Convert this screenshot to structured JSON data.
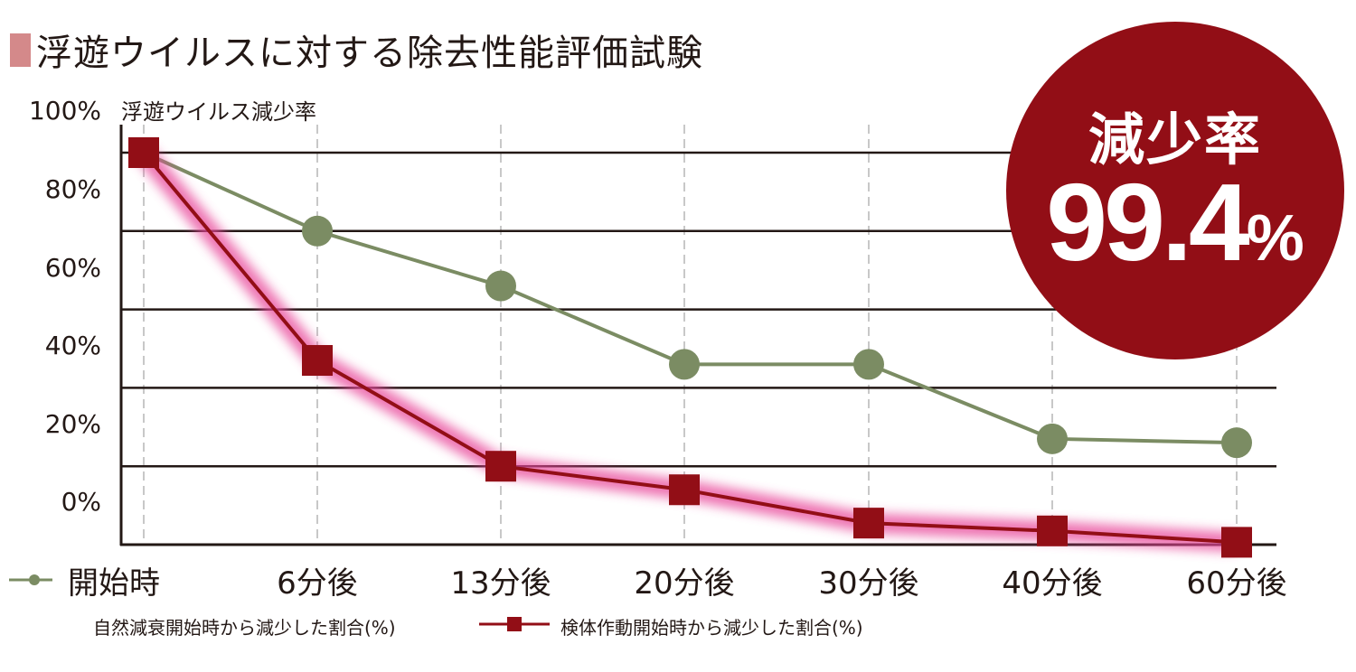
{
  "title": "浮遊ウイルスに対する除去性能評価試験",
  "title_marker_color": "#d4898a",
  "badge": {
    "label": "減少率",
    "value": "99.4",
    "unit": "%",
    "color": "#920e16"
  },
  "chart_data": {
    "type": "line",
    "title": "浮遊ウイルスに対する除去性能評価試験",
    "ylabel": "浮遊ウイルス減少率",
    "xlabel": "",
    "ylim": [
      0,
      100
    ],
    "yticks": [
      "100%",
      "80%",
      "60%",
      "40%",
      "20%",
      "0%"
    ],
    "categories": [
      "開始時",
      "6分後",
      "13分後",
      "20分後",
      "30分後",
      "40分後",
      "60分後"
    ],
    "grid": {
      "horizontal": true,
      "vertical": "dashed"
    },
    "legend_position": "bottom",
    "series": [
      {
        "name": "自然減衰開始時から減少した割合(%)",
        "marker": "circle",
        "color": "#7b8c63",
        "values": [
          100,
          80,
          66,
          46,
          46,
          27,
          26
        ]
      },
      {
        "name": "検体作動開始時から減少した割合(%)",
        "marker": "square",
        "color": "#920e16",
        "glow": "#e8479a",
        "values": [
          100,
          47,
          20,
          14,
          5.5,
          3.5,
          0.6
        ]
      }
    ],
    "annotations": [
      {
        "text": "減少率 99.4%",
        "type": "badge"
      }
    ]
  }
}
